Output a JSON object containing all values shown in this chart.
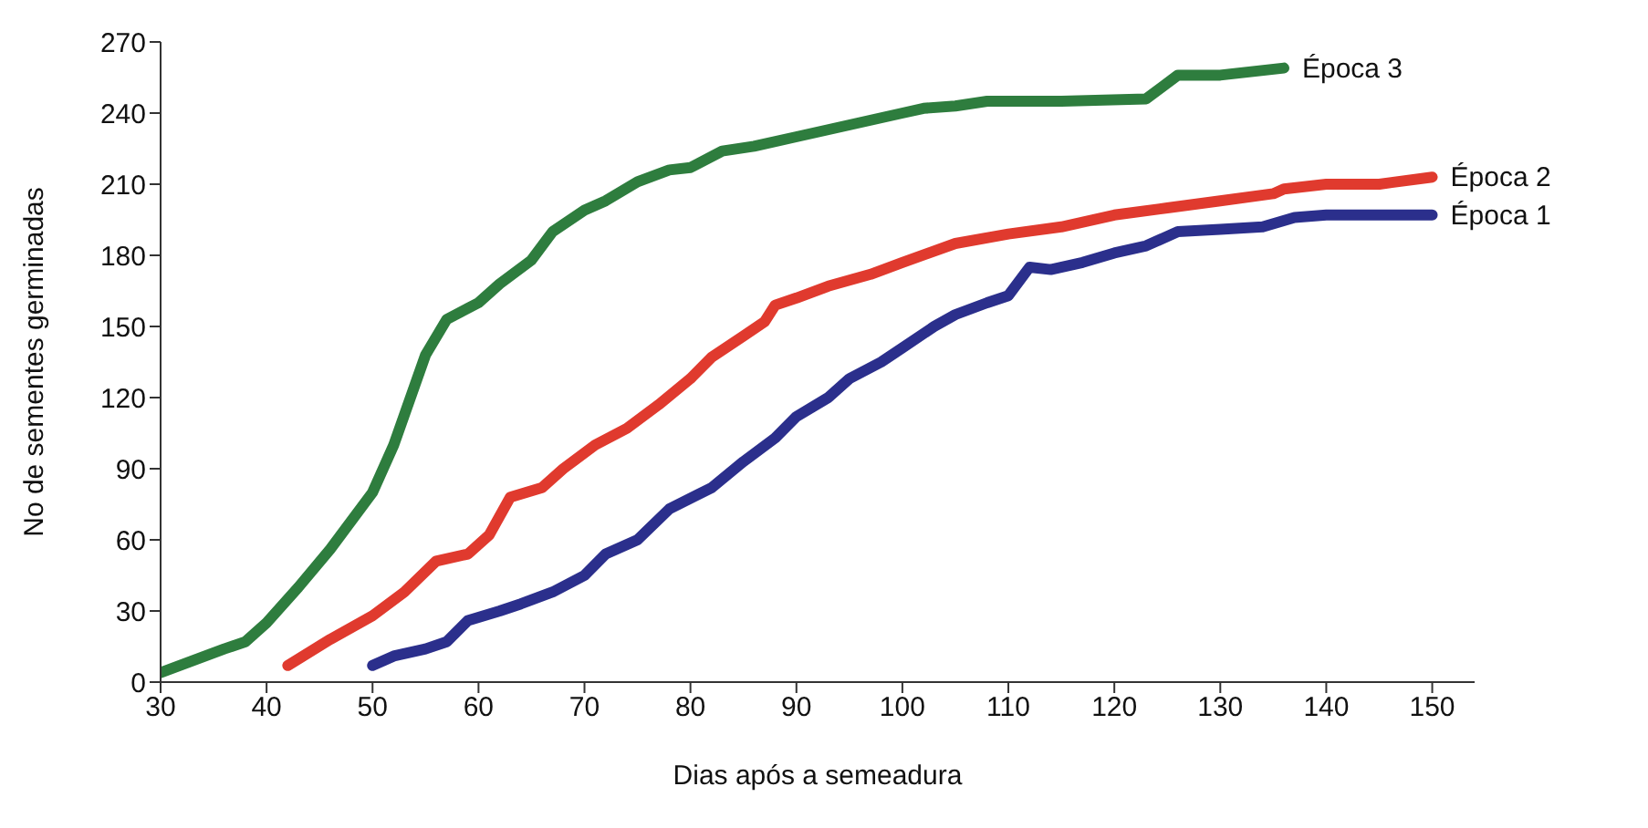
{
  "chart_data": {
    "type": "line",
    "xlabel": "Dias após a semeadura",
    "ylabel": "No de sementes germinadas",
    "xlim": [
      30,
      154
    ],
    "xticks": [
      30,
      40,
      50,
      60,
      70,
      80,
      90,
      100,
      110,
      120,
      130,
      140,
      150
    ],
    "ylim": [
      0,
      270
    ],
    "yticks": [
      0,
      30,
      60,
      90,
      120,
      150,
      180,
      210,
      240,
      270
    ],
    "grid": false,
    "legend": false,
    "marker": "none",
    "line_style": "solid",
    "series": [
      {
        "name": "Época 3",
        "color": "#2e7d3e",
        "x": [
          30,
          33,
          36,
          38,
          40,
          43,
          46,
          50,
          52,
          55,
          57,
          60,
          62,
          65,
          67,
          70,
          72,
          75,
          78,
          80,
          83,
          86,
          90,
          95,
          100,
          102,
          105,
          108,
          115,
          123,
          126,
          130,
          136
        ],
        "values": [
          4,
          9,
          14,
          17,
          25,
          40,
          56,
          80,
          100,
          138,
          153,
          160,
          168,
          178,
          190,
          199,
          203,
          211,
          216,
          217,
          224,
          226,
          230,
          235,
          240,
          242,
          243,
          245,
          245,
          246,
          256,
          256,
          259
        ]
      },
      {
        "name": "Época 2",
        "color": "#e03a2e",
        "x": [
          42,
          46,
          50,
          53,
          56,
          59,
          61,
          63,
          66,
          68,
          71,
          74,
          77,
          80,
          82,
          85,
          87,
          88,
          90,
          93,
          97,
          100,
          105,
          110,
          115,
          120,
          125,
          130,
          135,
          136,
          140,
          145,
          150
        ],
        "values": [
          7,
          18,
          28,
          38,
          51,
          54,
          62,
          78,
          82,
          90,
          100,
          107,
          117,
          128,
          137,
          146,
          152,
          159,
          162,
          167,
          172,
          177,
          185,
          189,
          192,
          197,
          200,
          203,
          206,
          208,
          210,
          210,
          213
        ]
      },
      {
        "name": "Época 1",
        "color": "#2b2f8c",
        "x": [
          50,
          52,
          55,
          57,
          59,
          62,
          64,
          67,
          70,
          72,
          75,
          78,
          82,
          85,
          88,
          90,
          93,
          95,
          98,
          100,
          103,
          105,
          108,
          110,
          112,
          114,
          117,
          120,
          123,
          126,
          130,
          134,
          137,
          140,
          145,
          150
        ],
        "values": [
          7,
          11,
          14,
          17,
          26,
          30,
          33,
          38,
          45,
          54,
          60,
          73,
          82,
          93,
          103,
          112,
          120,
          128,
          135,
          141,
          150,
          155,
          160,
          163,
          175,
          174,
          177,
          181,
          184,
          190,
          191,
          192,
          196,
          197,
          197,
          197
        ]
      }
    ]
  }
}
